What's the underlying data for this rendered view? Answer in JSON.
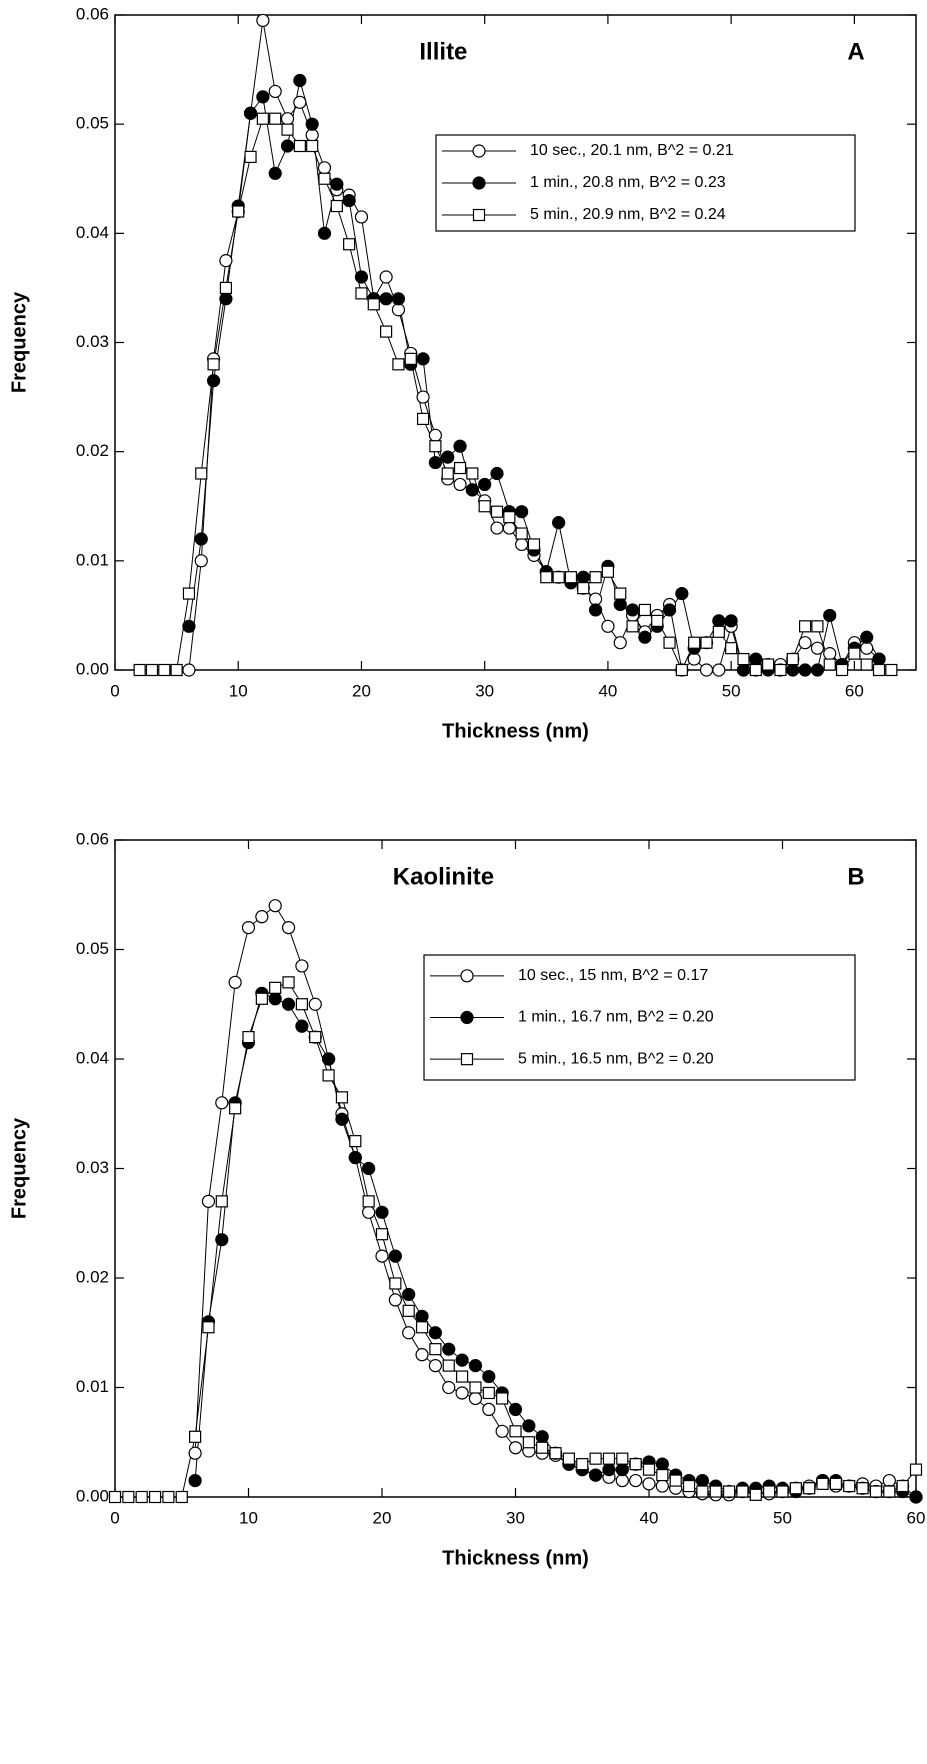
{
  "chart_data": [
    {
      "type": "line",
      "title": "Illite",
      "label": "A",
      "xlabel": "Thickness (nm)",
      "ylabel": "Frequency",
      "xlim": [
        0,
        65
      ],
      "xticks": [
        0,
        10,
        20,
        30,
        40,
        50,
        60
      ],
      "ylim": [
        0,
        0.06
      ],
      "yticks": [
        {
          "value": 0,
          "label": "0.00"
        },
        {
          "value": 0.01,
          "label": "0.01"
        },
        {
          "value": 0.02,
          "label": "0.02"
        },
        {
          "value": 0.03,
          "label": "0.03"
        },
        {
          "value": 0.04,
          "label": "0.04"
        },
        {
          "value": 0.05,
          "label": "0.05"
        },
        {
          "value": 0.06,
          "label": "0.06"
        }
      ],
      "legend": "upper right",
      "x": [
        2,
        3,
        4,
        5,
        6,
        7,
        8,
        9,
        10,
        11,
        12,
        13,
        14,
        15,
        16,
        17,
        18,
        19,
        20,
        21,
        22,
        23,
        24,
        25,
        26,
        27,
        28,
        29,
        30,
        31,
        32,
        33,
        34,
        35,
        36,
        37,
        38,
        39,
        40,
        41,
        42,
        43,
        44,
        45,
        46,
        47,
        48,
        49,
        50,
        51,
        52,
        53,
        54,
        55,
        56,
        57,
        58,
        59,
        60,
        61,
        62,
        63
      ],
      "series": [
        {
          "name": "10 sec., 20.1 nm, B^2 = 0.21",
          "color": "#000000",
          "marker": "open-circle",
          "values": [
            null,
            null,
            null,
            null,
            0,
            0.01,
            0.0285,
            0.0375,
            0.042,
            0.051,
            0.0595,
            0.053,
            0.0505,
            0.052,
            0.049,
            0.046,
            0.044,
            0.0435,
            0.0415,
            0.034,
            0.036,
            0.033,
            0.029,
            0.025,
            0.0215,
            0.0175,
            0.017,
            0.0165,
            0.0155,
            0.013,
            0.013,
            0.0115,
            0.0105,
            0.009,
            0.0085,
            0.008,
            0.0075,
            0.0065,
            0.004,
            0.0025,
            0.005,
            0.0035,
            0.005,
            0.006,
            0,
            0.001,
            0,
            0,
            0.004,
            0,
            0,
            0.0005,
            0.0005,
            0.001,
            0.0025,
            0.002,
            0.0015,
            0.0005,
            0.0025,
            0.002,
            0.001,
            null
          ]
        },
        {
          "name": "1 min., 20.8 nm, B^2 = 0.23",
          "color": "#000000",
          "marker": "filled-circle",
          "values": [
            null,
            null,
            null,
            null,
            0.004,
            0.012,
            0.0265,
            0.034,
            0.0425,
            0.051,
            0.0525,
            0.0455,
            0.048,
            0.054,
            0.05,
            0.04,
            0.0445,
            0.043,
            0.036,
            0.034,
            0.034,
            0.034,
            0.028,
            0.0285,
            0.019,
            0.0195,
            0.0205,
            0.0165,
            0.017,
            0.018,
            0.0145,
            0.0145,
            0.011,
            0.009,
            0.0135,
            0.008,
            0.0085,
            0.0055,
            0.0095,
            0.006,
            0.0055,
            0.003,
            0.004,
            0.0055,
            0.007,
            0.002,
            0.0025,
            0.0045,
            0.0045,
            0,
            0.001,
            0,
            0,
            0,
            0,
            0,
            0.005,
            0.0005,
            0.002,
            0.003,
            0.001,
            null
          ]
        },
        {
          "name": "5 min., 20.9 nm, B^2 = 0.24",
          "color": "#000000",
          "marker": "open-square",
          "values": [
            0,
            0,
            0,
            0,
            0.007,
            0.018,
            0.028,
            0.035,
            0.042,
            0.047,
            0.0505,
            0.0505,
            0.0495,
            0.048,
            0.048,
            0.045,
            0.0425,
            0.039,
            0.0345,
            0.0335,
            0.031,
            0.028,
            0.0285,
            0.023,
            0.0205,
            0.018,
            0.0185,
            0.018,
            0.015,
            0.0145,
            0.014,
            0.0125,
            0.0115,
            0.0085,
            0.0085,
            0.0085,
            0.0075,
            0.0085,
            0.009,
            0.007,
            0.004,
            0.0055,
            0.0045,
            0.0025,
            0,
            0.0025,
            0.0025,
            0.0035,
            0.002,
            0.001,
            0,
            0.0005,
            0,
            0.001,
            0.004,
            0.004,
            0.0005,
            0,
            0.0015,
            0.0005,
            0,
            0
          ]
        }
      ]
    },
    {
      "type": "line",
      "title": "Kaolinite",
      "label": "B",
      "xlabel": "Thickness (nm)",
      "ylabel": "Frequency",
      "xlim": [
        0,
        60
      ],
      "xticks": [
        0,
        10,
        20,
        30,
        40,
        50,
        60
      ],
      "ylim": [
        0,
        0.06
      ],
      "yticks": [
        {
          "value": 0,
          "label": "0.00"
        },
        {
          "value": 0.01,
          "label": "0.01"
        },
        {
          "value": 0.02,
          "label": "0.02"
        },
        {
          "value": 0.03,
          "label": "0.03"
        },
        {
          "value": 0.04,
          "label": "0.04"
        },
        {
          "value": 0.05,
          "label": "0.05"
        },
        {
          "value": 0.06,
          "label": "0.06"
        }
      ],
      "legend": "upper right",
      "x": [
        0,
        1,
        2,
        3,
        4,
        5,
        6,
        7,
        8,
        9,
        10,
        11,
        12,
        13,
        14,
        15,
        16,
        17,
        18,
        19,
        20,
        21,
        22,
        23,
        24,
        25,
        26,
        27,
        28,
        29,
        30,
        31,
        32,
        33,
        34,
        35,
        36,
        37,
        38,
        39,
        40,
        41,
        42,
        43,
        44,
        45,
        46,
        47,
        48,
        49,
        50,
        51,
        52,
        53,
        54,
        55,
        56,
        57,
        58,
        59,
        60
      ],
      "series": [
        {
          "name": "10 sec., 15 nm, B^2 = 0.17",
          "color": "#000000",
          "marker": "open-circle",
          "values": [
            null,
            null,
            null,
            null,
            null,
            null,
            0.004,
            0.027,
            0.036,
            0.047,
            0.052,
            0.053,
            0.054,
            0.052,
            0.0485,
            0.045,
            0.04,
            0.035,
            0.031,
            0.026,
            0.022,
            0.018,
            0.015,
            0.013,
            0.012,
            0.01,
            0.0095,
            0.009,
            0.008,
            0.006,
            0.0045,
            0.0042,
            0.004,
            0.0038,
            0.003,
            0.0025,
            0.002,
            0.0018,
            0.0015,
            0.0015,
            0.0012,
            0.001,
            0.0008,
            0.0005,
            0.0003,
            0.0002,
            0.0002,
            0.0005,
            0.0005,
            0.0003,
            0.0005,
            0.0008,
            0.001,
            0.0015,
            0.001,
            0.001,
            0.0012,
            0.001,
            0.0015,
            0.001,
            0
          ]
        },
        {
          "name": "1  min., 16.7 nm, B^2 = 0.20",
          "color": "#000000",
          "marker": "filled-circle",
          "values": [
            null,
            null,
            null,
            null,
            null,
            null,
            0.0015,
            0.016,
            0.0235,
            0.036,
            0.0415,
            0.046,
            0.0455,
            0.045,
            0.043,
            0.042,
            0.04,
            0.0345,
            0.031,
            0.03,
            0.026,
            0.022,
            0.0185,
            0.0165,
            0.015,
            0.0135,
            0.0125,
            0.012,
            0.011,
            0.0095,
            0.008,
            0.0065,
            0.0055,
            0.004,
            0.003,
            0.0025,
            0.002,
            0.0025,
            0.0025,
            0.003,
            0.0032,
            0.003,
            0.002,
            0.0015,
            0.0015,
            0.001,
            0.0005,
            0.0008,
            0.0008,
            0.001,
            0.0008,
            0.0005,
            0.0008,
            0.0015,
            0.0015,
            0.001,
            0.0008,
            0.0005,
            0.0005,
            0.0005,
            0
          ]
        },
        {
          "name": "5 min., 16.5 nm, B^2 = 0.20",
          "color": "#000000",
          "marker": "open-square",
          "values": [
            0,
            0,
            0,
            0,
            0,
            0,
            0.0055,
            0.0155,
            0.027,
            0.0355,
            0.042,
            0.0455,
            0.0465,
            0.047,
            0.045,
            0.042,
            0.0385,
            0.0365,
            0.0325,
            0.027,
            0.024,
            0.0195,
            0.017,
            0.0155,
            0.0135,
            0.012,
            0.011,
            0.01,
            0.0095,
            0.009,
            0.006,
            0.005,
            0.0045,
            0.004,
            0.0035,
            0.003,
            0.0035,
            0.0035,
            0.0035,
            0.003,
            0.0025,
            0.002,
            0.0015,
            0.001,
            0.0005,
            0.0005,
            0.0005,
            0.0005,
            0.0002,
            0.0005,
            0.0005,
            0.0008,
            0.0008,
            0.0012,
            0.0012,
            0.001,
            0.0008,
            0.0005,
            0.0005,
            0.001,
            0.0025
          ]
        }
      ]
    }
  ]
}
